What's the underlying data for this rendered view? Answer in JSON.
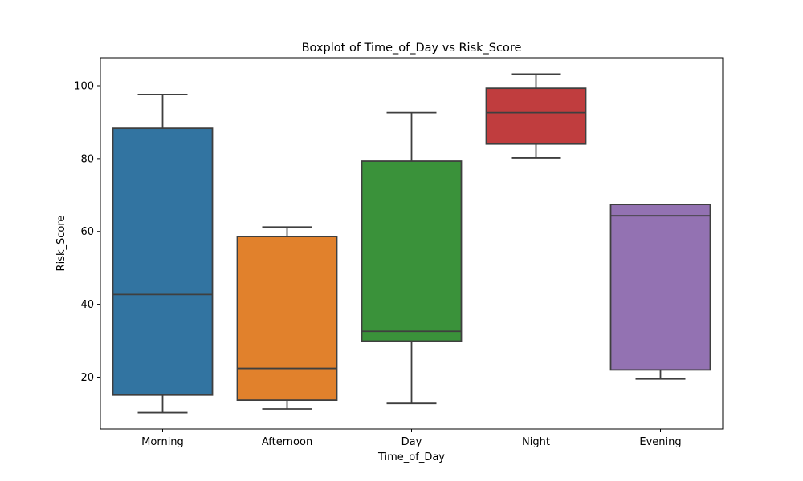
{
  "chart_data": {
    "type": "box",
    "title": "Boxplot of Time_of_Day vs Risk_Score",
    "xlabel": "Time_of_Day",
    "ylabel": "Risk_Score",
    "ylim": [
      5.8,
      107.7
    ],
    "yticks": [
      20,
      40,
      60,
      80,
      100
    ],
    "grid": false,
    "categories": [
      "Morning",
      "Afternoon",
      "Day",
      "Night",
      "Evening"
    ],
    "boxes": [
      {
        "category": "Morning",
        "whisker_low": 10.3,
        "q1": 15.1,
        "median": 42.7,
        "q3": 88.3,
        "whisker_high": 97.6,
        "color": "#3274a1"
      },
      {
        "category": "Afternoon",
        "whisker_low": 11.3,
        "q1": 13.7,
        "median": 22.4,
        "q3": 58.6,
        "whisker_high": 61.2,
        "color": "#e1812c"
      },
      {
        "category": "Day",
        "whisker_low": 12.8,
        "q1": 29.9,
        "median": 32.6,
        "q3": 79.3,
        "whisker_high": 92.6,
        "color": "#3a923a"
      },
      {
        "category": "Night",
        "whisker_low": 80.2,
        "q1": 84.0,
        "median": 92.6,
        "q3": 99.3,
        "whisker_high": 103.2,
        "color": "#c03d3e"
      },
      {
        "category": "Evening",
        "whisker_low": 19.5,
        "q1": 22.0,
        "median": 64.3,
        "q3": 67.4,
        "whisker_high": 67.4,
        "color": "#9372b2"
      }
    ],
    "line_color": "#3f3f3f"
  }
}
